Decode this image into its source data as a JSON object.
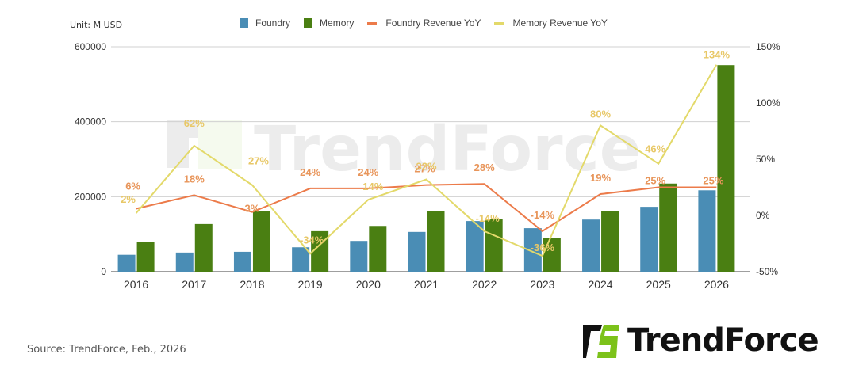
{
  "header": {
    "unit_label": "Unit: M USD"
  },
  "legend": [
    {
      "label": "Foundry",
      "type": "bar",
      "color": "#4a8db5"
    },
    {
      "label": "Memory",
      "type": "bar",
      "color": "#4a7f12"
    },
    {
      "label": "Foundry Revenue YoY",
      "type": "line",
      "color": "#ec7b4a"
    },
    {
      "label": "Memory Revenue YoY",
      "type": "line",
      "color": "#e3d96a"
    }
  ],
  "footer": {
    "source": "Source: TrendForce, Feb., 2026",
    "logo_text": "TrendForce"
  },
  "watermark": "TrendForce",
  "colors": {
    "foundry": "#4a8db5",
    "memory": "#4a7f12",
    "foundry_yoy": "#ec7b4a",
    "memory_yoy": "#e3d96a",
    "foundry_label": "#e8955a",
    "memory_label": "#e8c868",
    "logo_green": "#7cc21a",
    "grid": "#d0d0d0"
  },
  "chart_data": {
    "type": "bar",
    "title": "",
    "xlabel": "",
    "ylabel": "Unit: M USD",
    "categories": [
      "2016",
      "2017",
      "2018",
      "2019",
      "2020",
      "2021",
      "2022",
      "2023",
      "2024",
      "2025",
      "2026"
    ],
    "series": [
      {
        "name": "Foundry",
        "type": "bar",
        "axis": "left",
        "values": [
          45000,
          51000,
          53000,
          65000,
          82000,
          106000,
          135000,
          116000,
          139000,
          173000,
          217000
        ]
      },
      {
        "name": "Memory",
        "type": "bar",
        "axis": "left",
        "values": [
          80000,
          127000,
          161000,
          108000,
          122000,
          161000,
          140000,
          89000,
          161000,
          235000,
          551000
        ]
      },
      {
        "name": "Foundry Revenue YoY",
        "type": "line",
        "axis": "right",
        "values": [
          6,
          18,
          3,
          24,
          24,
          27,
          28,
          -14,
          19,
          25,
          25
        ],
        "labels": [
          "6%",
          "18%",
          "3%",
          "24%",
          "24%",
          "27%",
          "28%",
          "-14%",
          "19%",
          "25%",
          "25%"
        ]
      },
      {
        "name": "Memory Revenue YoY",
        "type": "line",
        "axis": "right",
        "values": [
          2,
          62,
          27,
          -34,
          14,
          32,
          -14,
          -36,
          80,
          46,
          134
        ],
        "labels": [
          "2%",
          "62%",
          "27%",
          "-34%",
          "14%",
          "32%",
          "-14%",
          "-36%",
          "80%",
          "46%",
          "134%"
        ]
      }
    ],
    "left_axis": {
      "ylim": [
        0,
        600000
      ],
      "ticks": [
        "0",
        "200000",
        "400000",
        "600000"
      ]
    },
    "right_axis": {
      "ylim": [
        -50,
        150
      ],
      "ticks": [
        "-50%",
        "0%",
        "50%",
        "100%",
        "150%"
      ]
    },
    "grid": true,
    "legend_position": "top"
  }
}
